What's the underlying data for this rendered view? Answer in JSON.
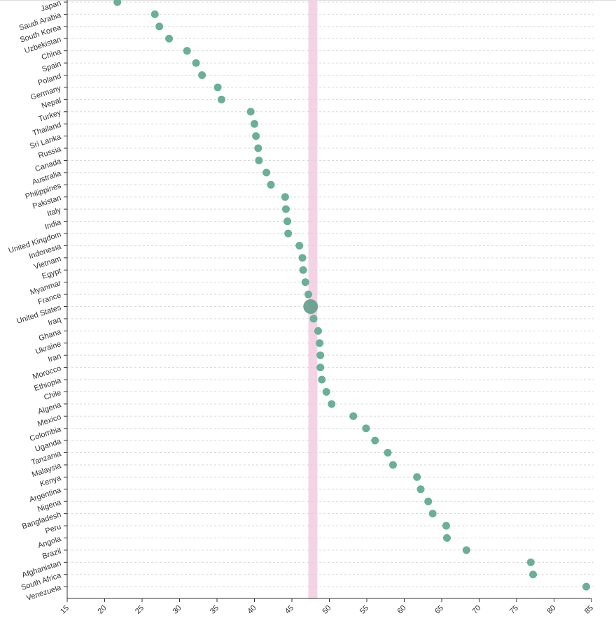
{
  "chart_data": {
    "type": "scatter",
    "title": "",
    "xlabel": "",
    "ylabel": "",
    "xlim": [
      15,
      85
    ],
    "x_ticks": [
      15,
      20,
      25,
      30,
      35,
      40,
      45,
      50,
      55,
      60,
      65,
      70,
      75,
      80,
      85
    ],
    "grid": "horizontal dashed",
    "highlight_band": {
      "x_range": [
        47.2,
        48.4
      ],
      "color": "#f3d3e5"
    },
    "point_color": "#6aaf98",
    "highlight_color": "#5f9c88",
    "highlighted_country": "United States",
    "points": [
      {
        "country": "Japan",
        "value": 21.7
      },
      {
        "country": "Saudi Arabia",
        "value": 26.7
      },
      {
        "country": "South Korea",
        "value": 27.3
      },
      {
        "country": "Uzbekistan",
        "value": 28.6
      },
      {
        "country": "China",
        "value": 31.0
      },
      {
        "country": "Spain",
        "value": 32.2
      },
      {
        "country": "Poland",
        "value": 33.0
      },
      {
        "country": "Germany",
        "value": 35.1
      },
      {
        "country": "Nepal",
        "value": 35.6
      },
      {
        "country": "Turkey",
        "value": 39.5
      },
      {
        "country": "Thailand",
        "value": 40.0
      },
      {
        "country": "Sri Lanka",
        "value": 40.2
      },
      {
        "country": "Russia",
        "value": 40.5
      },
      {
        "country": "Canada",
        "value": 40.6
      },
      {
        "country": "Australia",
        "value": 41.6
      },
      {
        "country": "Philippines",
        "value": 42.2
      },
      {
        "country": "Pakistan",
        "value": 44.1
      },
      {
        "country": "Italy",
        "value": 44.2
      },
      {
        "country": "India",
        "value": 44.4
      },
      {
        "country": "United Kingdom",
        "value": 44.5
      },
      {
        "country": "Indonesia",
        "value": 46.0
      },
      {
        "country": "Vietnam",
        "value": 46.4
      },
      {
        "country": "Egypt",
        "value": 46.5
      },
      {
        "country": "Myanmar",
        "value": 46.8
      },
      {
        "country": "France",
        "value": 47.2
      },
      {
        "country": "United States",
        "value": 47.5
      },
      {
        "country": "Iraq",
        "value": 47.9
      },
      {
        "country": "Ghana",
        "value": 48.5
      },
      {
        "country": "Ukraine",
        "value": 48.7
      },
      {
        "country": "Iran",
        "value": 48.8
      },
      {
        "country": "Morocco",
        "value": 48.8
      },
      {
        "country": "Ethiopia",
        "value": 49.0
      },
      {
        "country": "Chile",
        "value": 49.6
      },
      {
        "country": "Algeria",
        "value": 50.3
      },
      {
        "country": "Mexico",
        "value": 53.2
      },
      {
        "country": "Colombia",
        "value": 54.9
      },
      {
        "country": "Uganda",
        "value": 56.1
      },
      {
        "country": "Tanzania",
        "value": 57.8
      },
      {
        "country": "Malaysia",
        "value": 58.5
      },
      {
        "country": "Kenya",
        "value": 61.7
      },
      {
        "country": "Argentina",
        "value": 62.2
      },
      {
        "country": "Nigeria",
        "value": 63.2
      },
      {
        "country": "Bangladesh",
        "value": 63.8
      },
      {
        "country": "Peru",
        "value": 65.6
      },
      {
        "country": "Angola",
        "value": 65.7
      },
      {
        "country": "Brazil",
        "value": 68.3
      },
      {
        "country": "Afghanistan",
        "value": 76.9
      },
      {
        "country": "South Africa",
        "value": 77.2
      },
      {
        "country": "Venezuela",
        "value": 84.3
      }
    ]
  }
}
